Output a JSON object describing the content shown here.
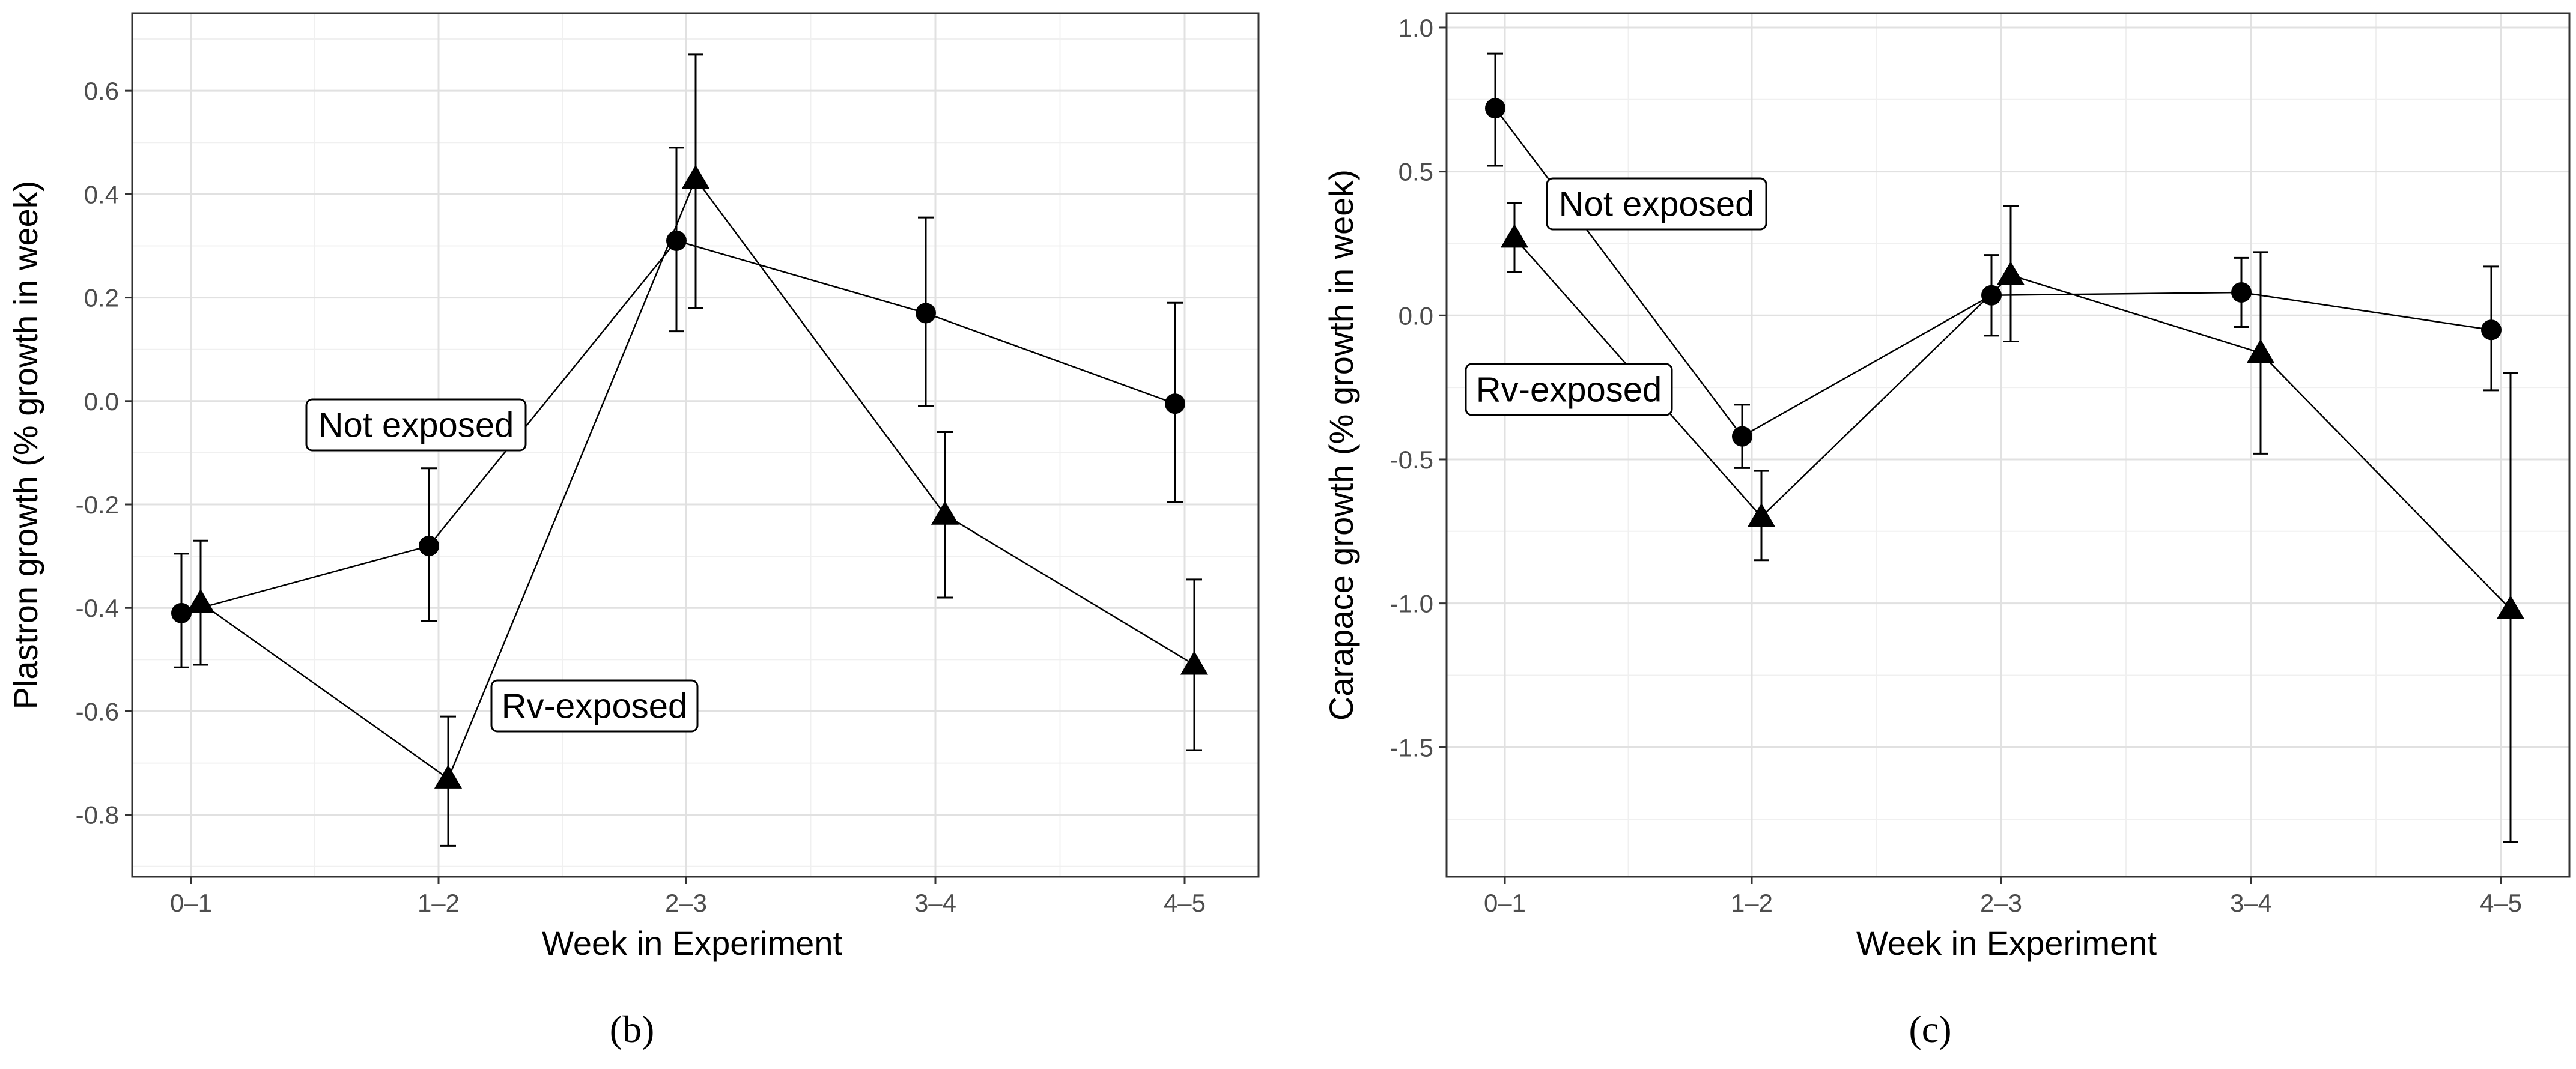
{
  "chart_data": [
    {
      "type": "line",
      "panel": "(b)",
      "xlabel": "Week in Experiment",
      "ylabel": "Plastron growth (% growth in week)",
      "categories": [
        "0–1",
        "1–2",
        "2–3",
        "3–4",
        "4–5"
      ],
      "ylim": [
        -0.92,
        0.75
      ],
      "yticks": [
        -0.8,
        -0.6,
        -0.4,
        -0.2,
        0.0,
        0.2,
        0.4,
        0.6
      ],
      "ytick_labels": [
        "-0.8",
        "-0.6",
        "-0.4",
        "-0.2",
        "0.0",
        "0.2",
        "0.4",
        "0.6"
      ],
      "grid": true,
      "series": [
        {
          "name": "Not exposed",
          "marker": "circle",
          "values": [
            -0.41,
            -0.28,
            0.31,
            0.17,
            -0.005
          ],
          "err_low": [
            -0.515,
            -0.425,
            0.135,
            -0.01,
            -0.195
          ],
          "err_high": [
            -0.295,
            -0.13,
            0.49,
            0.355,
            0.19
          ]
        },
        {
          "name": "Rv-exposed",
          "marker": "triangle",
          "values": [
            -0.39,
            -0.73,
            0.43,
            -0.22,
            -0.51
          ],
          "err_low": [
            -0.51,
            -0.86,
            0.18,
            -0.38,
            -0.675
          ],
          "err_high": [
            -0.27,
            -0.61,
            0.67,
            -0.06,
            -0.345
          ]
        }
      ],
      "annotations": [
        {
          "text": "Not exposed",
          "series": "Not exposed"
        },
        {
          "text": "Rv-exposed",
          "series": "Rv-exposed"
        }
      ]
    },
    {
      "type": "line",
      "panel": "(c)",
      "xlabel": "Week in Experiment",
      "ylabel": "Carapace growth (% growth in week)",
      "categories": [
        "0–1",
        "1–2",
        "2–3",
        "3–4",
        "4–5"
      ],
      "ylim": [
        -1.95,
        1.05
      ],
      "yticks": [
        -1.5,
        -1.0,
        -0.5,
        0.0,
        0.5,
        1.0
      ],
      "ytick_labels": [
        "-1.5",
        "-1.0",
        "-0.5",
        "0.0",
        "0.5",
        "1.0"
      ],
      "grid": true,
      "series": [
        {
          "name": "Not exposed",
          "marker": "circle",
          "values": [
            0.72,
            -0.42,
            0.07,
            0.08,
            -0.05
          ],
          "err_low": [
            0.52,
            -0.53,
            -0.07,
            -0.04,
            -0.26
          ],
          "err_high": [
            0.91,
            -0.31,
            0.21,
            0.2,
            0.17
          ]
        },
        {
          "name": "Rv-exposed",
          "marker": "triangle",
          "values": [
            0.27,
            -0.7,
            0.14,
            -0.13,
            -1.02
          ],
          "err_low": [
            0.15,
            -0.85,
            -0.09,
            -0.48,
            -1.83
          ],
          "err_high": [
            0.39,
            -0.54,
            0.38,
            0.22,
            -0.2
          ]
        }
      ],
      "annotations": [
        {
          "text": "Not exposed",
          "series": "Not exposed"
        },
        {
          "text": "Rv-exposed",
          "series": "Rv-exposed"
        }
      ]
    }
  ],
  "captions": {
    "left": "(b)",
    "right": "(c)"
  }
}
